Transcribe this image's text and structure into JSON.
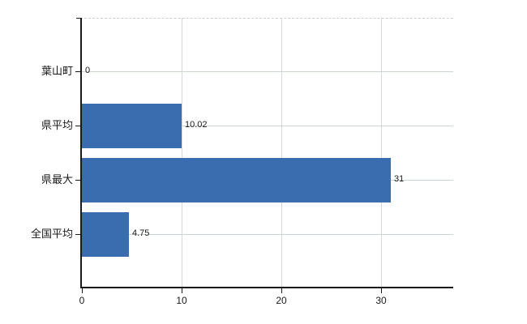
{
  "chart_data": {
    "type": "bar",
    "orientation": "horizontal",
    "title": "",
    "xlabel": "",
    "ylabel": "",
    "categories": [
      "葉山町",
      "県平均",
      "県最大",
      "全国平均"
    ],
    "values": [
      0,
      10.02,
      31,
      4.75
    ],
    "value_labels": [
      "0",
      "10.02",
      "31",
      "4.75"
    ],
    "x_ticks": [
      0,
      10,
      20,
      30
    ],
    "x_tick_labels": [
      "0",
      "10",
      "20",
      "30"
    ],
    "xlim": [
      0,
      37.2
    ],
    "grid": true,
    "legend": false,
    "colors": {
      "bar": "#3a6db0",
      "horizontal_grid": "#ccd5cc",
      "vertical_grid": "#d8d8d8",
      "top_border_dashed": "#cdcdcd",
      "axis": "#1a1a1a",
      "text": "#1a1a1a",
      "background": "#ffffff"
    }
  }
}
